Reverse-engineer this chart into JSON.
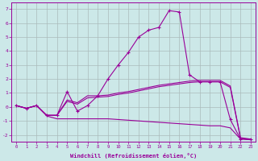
{
  "xlabel": "Windchill (Refroidissement éolien,°C)",
  "background_color": "#cce8e8",
  "grid_color": "#aabbbb",
  "line_color": "#990099",
  "x": [
    0,
    1,
    2,
    3,
    4,
    5,
    6,
    7,
    8,
    9,
    10,
    11,
    12,
    13,
    14,
    15,
    16,
    17,
    18,
    19,
    20,
    21,
    22,
    23
  ],
  "line_peak": [
    0.1,
    -0.1,
    0.1,
    -0.6,
    -0.6,
    1.1,
    -0.3,
    0.1,
    0.8,
    2.0,
    3.0,
    3.9,
    5.0,
    5.5,
    5.7,
    6.9,
    6.8,
    2.3,
    1.8,
    1.8,
    1.8,
    -0.9,
    -2.3,
    -2.3
  ],
  "line_rise1": [
    0.1,
    -0.1,
    0.1,
    -0.6,
    -0.6,
    0.5,
    0.3,
    0.8,
    0.8,
    0.85,
    1.0,
    1.1,
    1.25,
    1.4,
    1.55,
    1.65,
    1.75,
    1.85,
    1.9,
    1.9,
    1.9,
    1.5,
    -2.2,
    -2.3
  ],
  "line_rise2": [
    0.1,
    -0.1,
    0.1,
    -0.6,
    -0.6,
    0.4,
    0.2,
    0.65,
    0.7,
    0.75,
    0.9,
    1.0,
    1.15,
    1.3,
    1.45,
    1.55,
    1.65,
    1.75,
    1.8,
    1.8,
    1.8,
    1.4,
    -2.25,
    -2.35
  ],
  "line_drop": [
    0.1,
    -0.1,
    0.1,
    -0.65,
    -0.85,
    -0.85,
    -0.85,
    -0.85,
    -0.85,
    -0.85,
    -0.9,
    -0.95,
    -1.0,
    -1.05,
    -1.1,
    -1.15,
    -1.2,
    -1.25,
    -1.3,
    -1.35,
    -1.35,
    -1.5,
    -2.3,
    -2.35
  ],
  "ylim": [
    -2.5,
    7.5
  ],
  "xlim": [
    -0.5,
    23.5
  ],
  "yticks": [
    -2,
    -1,
    0,
    1,
    2,
    3,
    4,
    5,
    6,
    7
  ],
  "xticks": [
    0,
    1,
    2,
    3,
    4,
    5,
    6,
    7,
    8,
    9,
    10,
    11,
    12,
    13,
    14,
    15,
    16,
    17,
    18,
    19,
    20,
    21,
    22,
    23
  ]
}
